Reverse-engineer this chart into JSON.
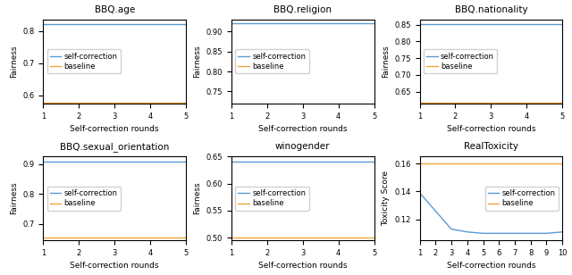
{
  "subplots": [
    {
      "title": "BBQ.age",
      "xlabel": "Self-correction rounds",
      "ylabel": "Fairness",
      "x": [
        1,
        2,
        3,
        4,
        5
      ],
      "self_correction": [
        0.82,
        0.82,
        0.82,
        0.82,
        0.82
      ],
      "baseline": [
        0.578,
        0.578,
        0.578,
        0.578,
        0.578
      ],
      "ylim": [
        0.575,
        0.835
      ],
      "xlim": [
        1,
        5
      ],
      "xticks": [
        1,
        2,
        3,
        4,
        5
      ],
      "legend_loc": "center left"
    },
    {
      "title": "BBQ.religion",
      "xlabel": "Self-correction rounds",
      "ylabel": "Fairness",
      "x": [
        1,
        2,
        3,
        4,
        5
      ],
      "self_correction": [
        0.921,
        0.921,
        0.921,
        0.921,
        0.921
      ],
      "baseline": [
        0.718,
        0.718,
        0.718,
        0.718,
        0.718
      ],
      "ylim": [
        0.72,
        0.93
      ],
      "xlim": [
        1,
        5
      ],
      "xticks": [
        1,
        2,
        3,
        4,
        5
      ],
      "legend_loc": "center left"
    },
    {
      "title": "BBQ.nationality",
      "xlabel": "Self-correction rounds",
      "ylabel": "Fairness",
      "x": [
        1,
        2,
        3,
        4,
        5
      ],
      "self_correction": [
        0.852,
        0.852,
        0.852,
        0.852,
        0.852
      ],
      "baseline": [
        0.617,
        0.617,
        0.617,
        0.617,
        0.617
      ],
      "ylim": [
        0.615,
        0.865
      ],
      "xlim": [
        1,
        5
      ],
      "xticks": [
        1,
        2,
        3,
        4,
        5
      ],
      "legend_loc": "center left"
    },
    {
      "title": "BBQ.sexual_orientation",
      "xlabel": "Self-correction rounds",
      "ylabel": "Fairness",
      "x": [
        1,
        2,
        3,
        4,
        5
      ],
      "self_correction": [
        0.908,
        0.908,
        0.908,
        0.908,
        0.908
      ],
      "baseline": [
        0.655,
        0.655,
        0.655,
        0.655,
        0.655
      ],
      "ylim": [
        0.645,
        0.925
      ],
      "xlim": [
        1,
        5
      ],
      "xticks": [
        1,
        2,
        3,
        4,
        5
      ],
      "legend_loc": "center left"
    },
    {
      "title": "winogender",
      "xlabel": "Self-correction rounds",
      "ylabel": "Fairness",
      "x": [
        1,
        2,
        3,
        4,
        5
      ],
      "self_correction": [
        0.641,
        0.641,
        0.641,
        0.641,
        0.641
      ],
      "baseline": [
        0.5,
        0.5,
        0.5,
        0.5,
        0.5
      ],
      "ylim": [
        0.495,
        0.65
      ],
      "xlim": [
        1,
        5
      ],
      "xticks": [
        1,
        2,
        3,
        4,
        5
      ],
      "legend_loc": "center left"
    },
    {
      "title": "RealToxicity",
      "xlabel": "Self-correction rounds",
      "ylabel": "Toxicity Score",
      "x": [
        1,
        2,
        3,
        4,
        5,
        6,
        7,
        8,
        9,
        10
      ],
      "self_correction": [
        0.139,
        0.126,
        0.113,
        0.111,
        0.11,
        0.11,
        0.11,
        0.11,
        0.11,
        0.111
      ],
      "baseline": [
        0.16,
        0.16,
        0.16,
        0.16,
        0.16,
        0.16,
        0.16,
        0.16,
        0.16,
        0.16
      ],
      "ylim": [
        0.105,
        0.165
      ],
      "xlim": [
        1,
        10
      ],
      "xticks": [
        1,
        2,
        3,
        4,
        5,
        6,
        7,
        8,
        9,
        10
      ],
      "legend_loc": "center right"
    }
  ],
  "color_self_correction": "#5B9BD5",
  "color_baseline": "#F4A43A",
  "label_self_correction": "self-correction",
  "label_baseline": "baseline"
}
